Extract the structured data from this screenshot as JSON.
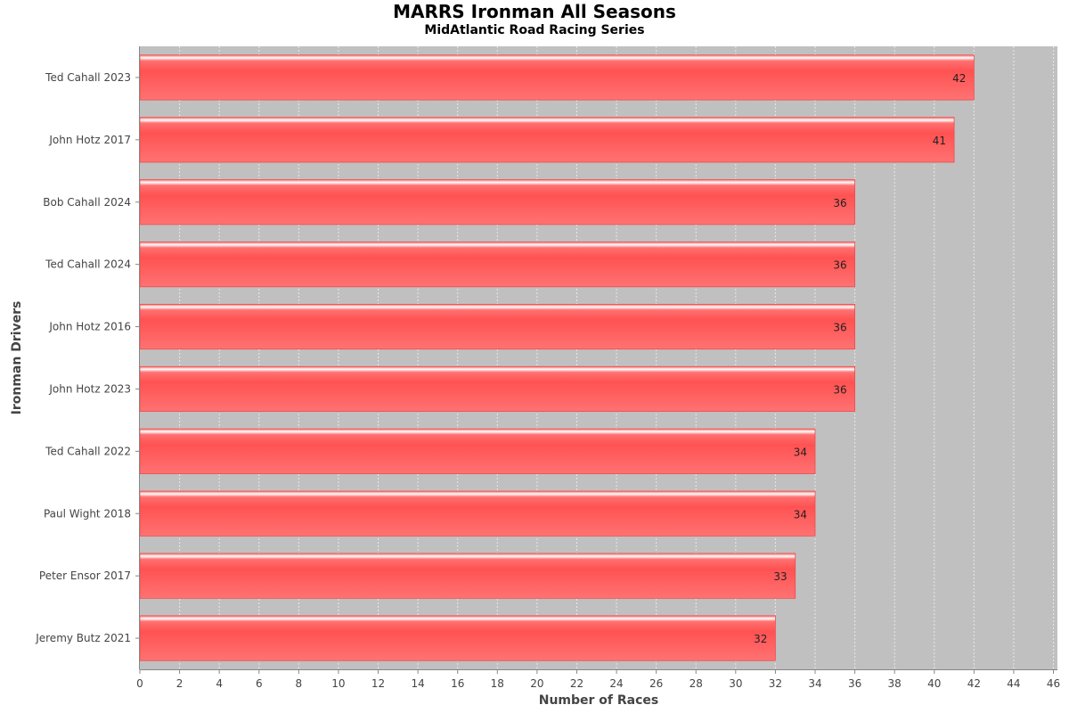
{
  "title": "MARRS Ironman All Seasons",
  "subtitle": "MidAtlantic Road Racing Series",
  "colors": {
    "plot_background": "#c0c0c0",
    "bar": "#ff5c5c",
    "bar_highlight": "#ffffff",
    "gridline": "#e8e8e8"
  },
  "chart_data": {
    "type": "bar",
    "orientation": "horizontal",
    "title": "MARRS Ironman All Seasons",
    "subtitle": "MidAtlantic Road Racing Series",
    "xlabel": "Number of Races",
    "ylabel": "Ironman Drivers",
    "categories": [
      "Ted Cahall 2023",
      "John Hotz 2017",
      "Bob Cahall 2024",
      "Ted Cahall 2024",
      "John Hotz 2016",
      "John Hotz 2023",
      "Ted Cahall 2022",
      "Paul Wight 2018",
      "Peter Ensor 2017",
      "Jeremy Butz 2021"
    ],
    "values": [
      42,
      41,
      36,
      36,
      36,
      36,
      34,
      34,
      33,
      32
    ],
    "xlim": [
      0,
      46.2
    ],
    "xticks": [
      0,
      2,
      4,
      6,
      8,
      10,
      12,
      14,
      16,
      18,
      20,
      22,
      24,
      26,
      28,
      30,
      32,
      34,
      36,
      38,
      40,
      42,
      44,
      46
    ],
    "grid": true,
    "legend": "none"
  }
}
